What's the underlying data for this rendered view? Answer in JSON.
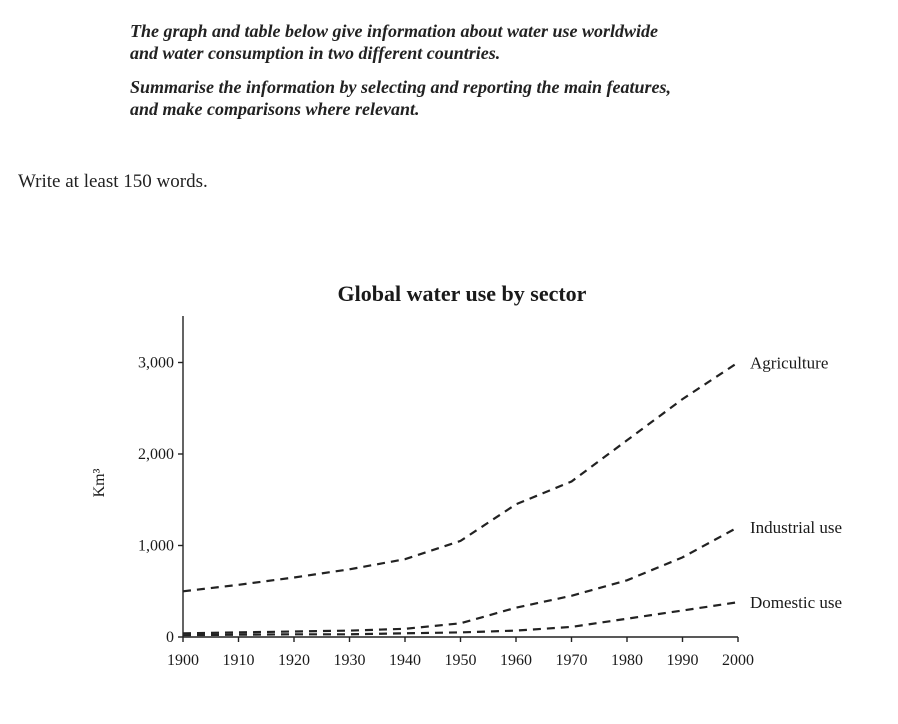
{
  "prompt": {
    "paragraph1_line1": "The graph and table below give information about water use worldwide",
    "paragraph1_line2": "and water consumption in two different countries.",
    "paragraph2_line1": "Summarise the information by selecting and reporting the main features,",
    "paragraph2_line2": "and make comparisons where relevant."
  },
  "instruction": "Write at least 150 words.",
  "chart_data": {
    "type": "line",
    "title": "Global water use by sector",
    "xlabel": "",
    "ylabel": "Km³",
    "xlim": [
      1900,
      2000
    ],
    "ylim": [
      0,
      3400
    ],
    "x_ticks": [
      1900,
      1910,
      1920,
      1930,
      1940,
      1950,
      1960,
      1970,
      1980,
      1990,
      2000
    ],
    "x_tick_labels": [
      "1900",
      "1910",
      "1920",
      "1930",
      "1940",
      "1950",
      "1960",
      "1970",
      "1980",
      "1990",
      "2000"
    ],
    "y_ticks": [
      0,
      1000,
      2000,
      3000
    ],
    "y_tick_labels": [
      "0",
      "1,000",
      "2,000",
      "3,000"
    ],
    "x": [
      1900,
      1910,
      1920,
      1930,
      1940,
      1950,
      1960,
      1970,
      1980,
      1990,
      2000
    ],
    "series": [
      {
        "name": "Agriculture",
        "values": [
          500,
          570,
          650,
          740,
          850,
          1050,
          1450,
          1700,
          2150,
          2600,
          3000
        ]
      },
      {
        "name": "Industrial use",
        "values": [
          40,
          50,
          60,
          70,
          90,
          150,
          320,
          450,
          620,
          870,
          1200
        ]
      },
      {
        "name": "Domestic use",
        "values": [
          20,
          25,
          30,
          30,
          40,
          50,
          70,
          110,
          200,
          290,
          380
        ]
      }
    ],
    "grid": false,
    "legend": "labels at line ends (right)"
  }
}
